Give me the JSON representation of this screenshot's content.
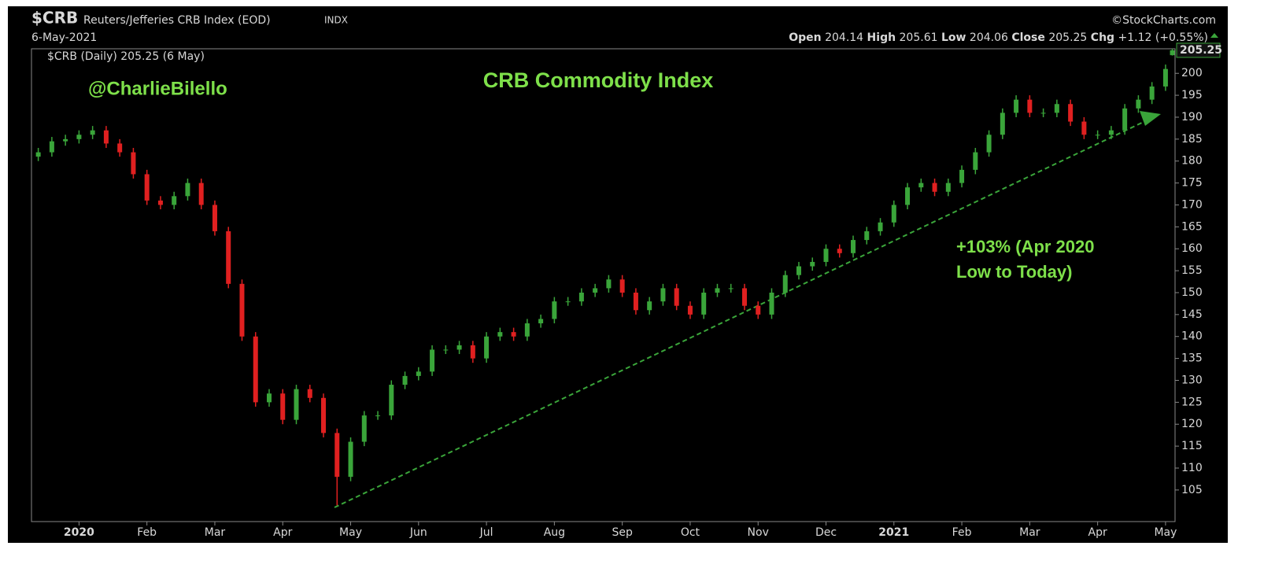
{
  "header": {
    "symbol": "$CRB",
    "name": "Reuters/Jefferies CRB Index (EOD)",
    "exchange": "INDX",
    "date": "6-May-2021",
    "source": "©StockCharts.com",
    "open_label": "Open",
    "high_label": "High",
    "low_label": "Low",
    "close_label": "Close",
    "chg_label": "Chg",
    "chg": "+1.12 (+0.55%)"
  },
  "chart_data": {
    "type": "candlestick",
    "title": "CRB Commodity Index",
    "legend": "$CRB (Daily) 205.25 (6 May)",
    "annotations": [
      "@CharlieBilello",
      "+103% (Apr 2020",
      "Low to Today)"
    ],
    "up_color": "#3aa53a",
    "down_color": "#e02020",
    "xlim": [
      -0.7,
      16.14
    ],
    "xticks": [
      {
        "value": 0,
        "label": "2020"
      },
      {
        "value": 1,
        "label": "Feb"
      },
      {
        "value": 2,
        "label": "Mar"
      },
      {
        "value": 3,
        "label": "Apr"
      },
      {
        "value": 4,
        "label": "May"
      },
      {
        "value": 5,
        "label": "Jun"
      },
      {
        "value": 6,
        "label": "Jul"
      },
      {
        "value": 7,
        "label": "Aug"
      },
      {
        "value": 8,
        "label": "Sep"
      },
      {
        "value": 9,
        "label": "Oct"
      },
      {
        "value": 10,
        "label": "Nov"
      },
      {
        "value": 11,
        "label": "Dec"
      },
      {
        "value": 12,
        "label": "2021"
      },
      {
        "value": 13,
        "label": "Feb"
      },
      {
        "value": 14,
        "label": "Mar"
      },
      {
        "value": 15,
        "label": "Apr"
      },
      {
        "value": 16,
        "label": "May"
      }
    ],
    "ylim": [
      97.8,
      205.6
    ],
    "yticks": [
      105,
      110,
      115,
      120,
      125,
      130,
      135,
      140,
      145,
      150,
      155,
      160,
      165,
      170,
      175,
      180,
      185,
      190,
      195,
      200
    ],
    "x": [
      -0.6,
      -0.4,
      -0.2,
      0,
      0.2,
      0.4,
      0.6,
      0.8,
      1,
      1.2,
      1.4,
      1.6,
      1.8,
      2,
      2.2,
      2.4,
      2.6,
      2.8,
      3,
      3.2,
      3.4,
      3.6,
      3.8,
      4,
      4.2,
      4.4,
      4.6,
      4.8,
      5,
      5.2,
      5.4,
      5.6,
      5.8,
      6,
      6.2,
      6.4,
      6.6,
      6.8,
      7,
      7.2,
      7.4,
      7.6,
      7.8,
      8,
      8.2,
      8.4,
      8.6,
      8.8,
      9,
      9.2,
      9.4,
      9.6,
      9.8,
      10,
      10.2,
      10.4,
      10.6,
      10.8,
      11,
      11.2,
      11.4,
      11.6,
      11.8,
      12,
      12.2,
      12.4,
      12.6,
      12.8,
      13,
      13.2,
      13.4,
      13.6,
      13.8,
      14,
      14.2,
      14.4,
      14.6,
      14.8,
      15,
      15.2,
      15.4,
      15.6,
      15.8,
      16,
      16.1
    ],
    "open": [
      181,
      182,
      184.5,
      185,
      186,
      187,
      184,
      182,
      177,
      171,
      170,
      172,
      175,
      170,
      164,
      152,
      140,
      125,
      127,
      121,
      128,
      126,
      118,
      108,
      116,
      122,
      122,
      129,
      131,
      132,
      137,
      137,
      138,
      135,
      140,
      141,
      140,
      143,
      144,
      148,
      148,
      150,
      151,
      153,
      150,
      146,
      148,
      151,
      147,
      145,
      150,
      151,
      151,
      147,
      145,
      150,
      154,
      156,
      157,
      160,
      159,
      162,
      164,
      166,
      170,
      174,
      175,
      173,
      175,
      178,
      182,
      186,
      191,
      194,
      191,
      191,
      193,
      189,
      186,
      186,
      187,
      192,
      194,
      197,
      204.14
    ],
    "high": [
      183,
      185.5,
      186,
      187,
      188,
      188,
      185,
      183,
      178,
      172,
      173,
      176,
      176,
      171,
      165,
      153,
      141,
      128,
      128,
      129,
      129,
      127,
      119,
      117,
      123,
      123,
      130,
      132,
      133,
      138,
      138,
      139,
      139,
      141,
      142,
      142,
      144,
      145,
      149,
      149,
      151,
      152,
      154,
      154,
      151,
      149,
      152,
      152,
      148,
      151,
      152,
      152,
      152,
      148,
      151,
      155,
      157,
      158,
      161,
      161,
      163,
      165,
      167,
      171,
      175,
      176,
      176,
      176,
      179,
      183,
      187,
      192,
      195,
      195,
      192,
      194,
      194,
      190,
      187,
      188,
      193,
      195,
      198,
      202,
      205.61
    ],
    "low": [
      180,
      181,
      183.5,
      184,
      185,
      183,
      181,
      176,
      170,
      169,
      169,
      171,
      169,
      163,
      151,
      139,
      124,
      124,
      120,
      120,
      125,
      117,
      101.5,
      107,
      115,
      121,
      121,
      128,
      130,
      131,
      136,
      136,
      134,
      134,
      139,
      139,
      139,
      142,
      143,
      147,
      147,
      149,
      150,
      149,
      145,
      145,
      147,
      146,
      144,
      144,
      149,
      150,
      146,
      144,
      144,
      149,
      153,
      155,
      156,
      158,
      158,
      161,
      163,
      165,
      169,
      173,
      172,
      172,
      174,
      177,
      181,
      185,
      190,
      190,
      190,
      190,
      188,
      185,
      185,
      185,
      186,
      191,
      193,
      196,
      204.06
    ],
    "close": [
      182,
      184.5,
      185,
      186,
      187,
      184,
      182,
      177,
      171,
      170,
      172,
      175,
      170,
      164,
      152,
      140,
      125,
      127,
      121,
      128,
      126,
      118,
      108,
      116,
      122,
      122,
      129,
      131,
      132,
      137,
      137,
      138,
      135,
      140,
      141,
      140,
      143,
      144,
      148,
      148,
      150,
      151,
      153,
      150,
      146,
      148,
      151,
      147,
      145,
      150,
      151,
      151,
      147,
      145,
      150,
      154,
      156,
      157,
      160,
      159,
      162,
      164,
      166,
      170,
      174,
      175,
      173,
      175,
      178,
      182,
      186,
      191,
      194,
      191,
      191,
      193,
      189,
      186,
      186,
      187,
      192,
      194,
      197,
      201,
      205.25
    ]
  }
}
